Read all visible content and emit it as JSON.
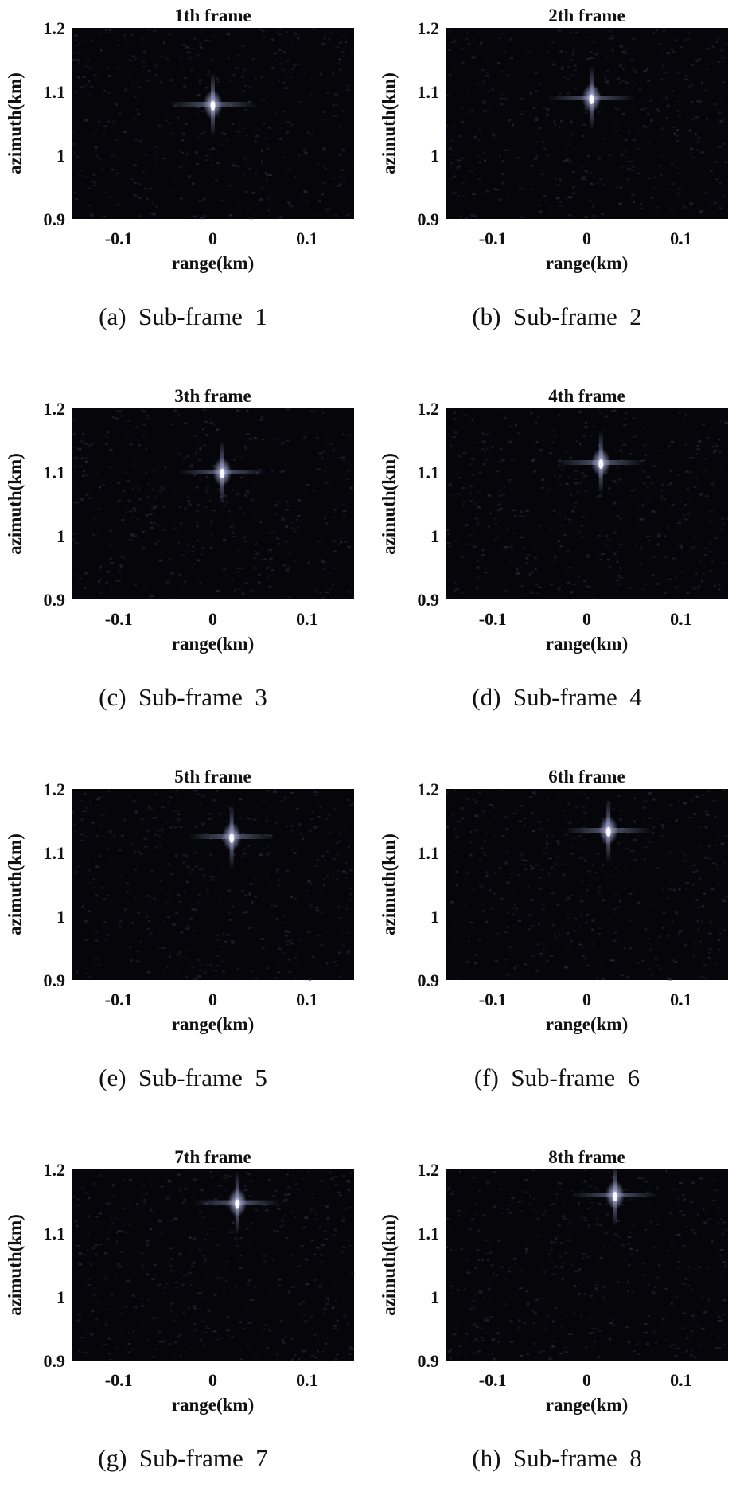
{
  "chart_data": [
    {
      "type": "heatmap",
      "title": "1th frame",
      "xlabel": "range(km)",
      "ylabel": "azimuth(km)",
      "xlim": [
        -0.15,
        0.15
      ],
      "ylim": [
        0.9,
        1.2
      ],
      "xticks": [
        "-0.1",
        "0",
        "0.1"
      ],
      "xtick_values": [
        -0.1,
        0,
        0.1
      ],
      "yticks": [
        "0.9",
        "1",
        "1.1",
        "1.2"
      ],
      "ytick_values": [
        0.9,
        1.0,
        1.1,
        1.2
      ],
      "target": {
        "x": 0.0,
        "y": 1.08
      },
      "caption": "(a)  Sub-frame  1"
    },
    {
      "type": "heatmap",
      "title": "2th frame",
      "xlabel": "range(km)",
      "ylabel": "azimuth(km)",
      "xlim": [
        -0.15,
        0.15
      ],
      "ylim": [
        0.9,
        1.2
      ],
      "xticks": [
        "-0.1",
        "0",
        "0.1"
      ],
      "xtick_values": [
        -0.1,
        0,
        0.1
      ],
      "yticks": [
        "0.9",
        "1",
        "1.1",
        "1.2"
      ],
      "ytick_values": [
        0.9,
        1.0,
        1.1,
        1.2
      ],
      "target": {
        "x": 0.005,
        "y": 1.09
      },
      "caption": "(b)  Sub-frame  2"
    },
    {
      "type": "heatmap",
      "title": "3th frame",
      "xlabel": "range(km)",
      "ylabel": "azimuth(km)",
      "xlim": [
        -0.15,
        0.15
      ],
      "ylim": [
        0.9,
        1.2
      ],
      "xticks": [
        "-0.1",
        "0",
        "0.1"
      ],
      "xtick_values": [
        -0.1,
        0,
        0.1
      ],
      "yticks": [
        "0.9",
        "1",
        "1.1",
        "1.2"
      ],
      "ytick_values": [
        0.9,
        1.0,
        1.1,
        1.2
      ],
      "target": {
        "x": 0.01,
        "y": 1.1
      },
      "caption": "(c)  Sub-frame  3"
    },
    {
      "type": "heatmap",
      "title": "4th frame",
      "xlabel": "range(km)",
      "ylabel": "azimuth(km)",
      "xlim": [
        -0.15,
        0.15
      ],
      "ylim": [
        0.9,
        1.2
      ],
      "xticks": [
        "-0.1",
        "0",
        "0.1"
      ],
      "xtick_values": [
        -0.1,
        0,
        0.1
      ],
      "yticks": [
        "0.9",
        "1",
        "1.1",
        "1.2"
      ],
      "ytick_values": [
        0.9,
        1.0,
        1.1,
        1.2
      ],
      "target": {
        "x": 0.015,
        "y": 1.115
      },
      "caption": "(d)  Sub-frame  4"
    },
    {
      "type": "heatmap",
      "title": "5th frame",
      "xlabel": "range(km)",
      "ylabel": "azimuth(km)",
      "xlim": [
        -0.15,
        0.15
      ],
      "ylim": [
        0.9,
        1.2
      ],
      "xticks": [
        "-0.1",
        "0",
        "0.1"
      ],
      "xtick_values": [
        -0.1,
        0,
        0.1
      ],
      "yticks": [
        "0.9",
        "1",
        "1.1",
        "1.2"
      ],
      "ytick_values": [
        0.9,
        1.0,
        1.1,
        1.2
      ],
      "target": {
        "x": 0.02,
        "y": 1.125
      },
      "caption": "(e)  Sub-frame  5"
    },
    {
      "type": "heatmap",
      "title": "6th frame",
      "xlabel": "range(km)",
      "ylabel": "azimuth(km)",
      "xlim": [
        -0.15,
        0.15
      ],
      "ylim": [
        0.9,
        1.2
      ],
      "xticks": [
        "-0.1",
        "0",
        "0.1"
      ],
      "xtick_values": [
        -0.1,
        0,
        0.1
      ],
      "yticks": [
        "0.9",
        "1",
        "1.1",
        "1.2"
      ],
      "ytick_values": [
        0.9,
        1.0,
        1.1,
        1.2
      ],
      "target": {
        "x": 0.023,
        "y": 1.135
      },
      "caption": "(f)  Sub-frame  6"
    },
    {
      "type": "heatmap",
      "title": "7th frame",
      "xlabel": "range(km)",
      "ylabel": "azimuth(km)",
      "xlim": [
        -0.15,
        0.15
      ],
      "ylim": [
        0.9,
        1.2
      ],
      "xticks": [
        "-0.1",
        "0",
        "0.1"
      ],
      "xtick_values": [
        -0.1,
        0,
        0.1
      ],
      "yticks": [
        "0.9",
        "1",
        "1.1",
        "1.2"
      ],
      "ytick_values": [
        0.9,
        1.0,
        1.1,
        1.2
      ],
      "target": {
        "x": 0.026,
        "y": 1.148
      },
      "caption": "(g)  Sub-frame  7"
    },
    {
      "type": "heatmap",
      "title": "8th frame",
      "xlabel": "range(km)",
      "ylabel": "azimuth(km)",
      "xlim": [
        -0.15,
        0.15
      ],
      "ylim": [
        0.9,
        1.2
      ],
      "xticks": [
        "-0.1",
        "0",
        "0.1"
      ],
      "xtick_values": [
        -0.1,
        0,
        0.1
      ],
      "yticks": [
        "0.9",
        "1",
        "1.1",
        "1.2"
      ],
      "ytick_values": [
        0.9,
        1.0,
        1.1,
        1.2
      ],
      "target": {
        "x": 0.03,
        "y": 1.16
      },
      "caption": "(h)  Sub-frame  8"
    }
  ],
  "colors": {
    "background": "#ffffff",
    "image_background": "#05050a",
    "speckle": "#2a2a3a",
    "target_glow": "#9aa0c8",
    "target_core": "#ffffff",
    "text": "#111111"
  }
}
